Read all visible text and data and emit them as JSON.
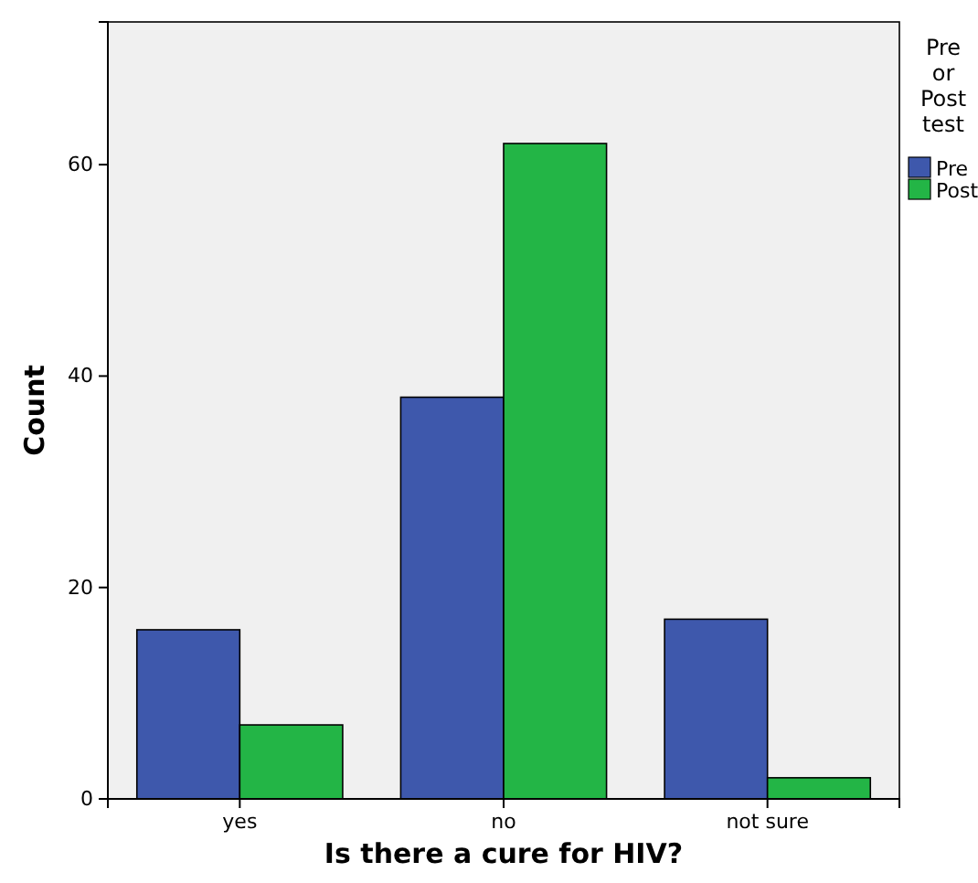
{
  "chart_data": {
    "type": "bar",
    "xlabel": "Is there a cure for HIV?",
    "ylabel": "Count",
    "legend_title": "Pre or Post test",
    "categories": [
      "yes",
      "no",
      "not sure"
    ],
    "series": [
      {
        "name": "Pre",
        "color": "#3e58ac",
        "values": [
          16,
          38,
          17
        ]
      },
      {
        "name": "Post",
        "color": "#23b546",
        "values": [
          7,
          62,
          2
        ]
      }
    ],
    "ylim": [
      0,
      73.5
    ],
    "yticks": [
      0,
      20,
      40,
      60
    ],
    "grid": false,
    "legend": "right"
  }
}
